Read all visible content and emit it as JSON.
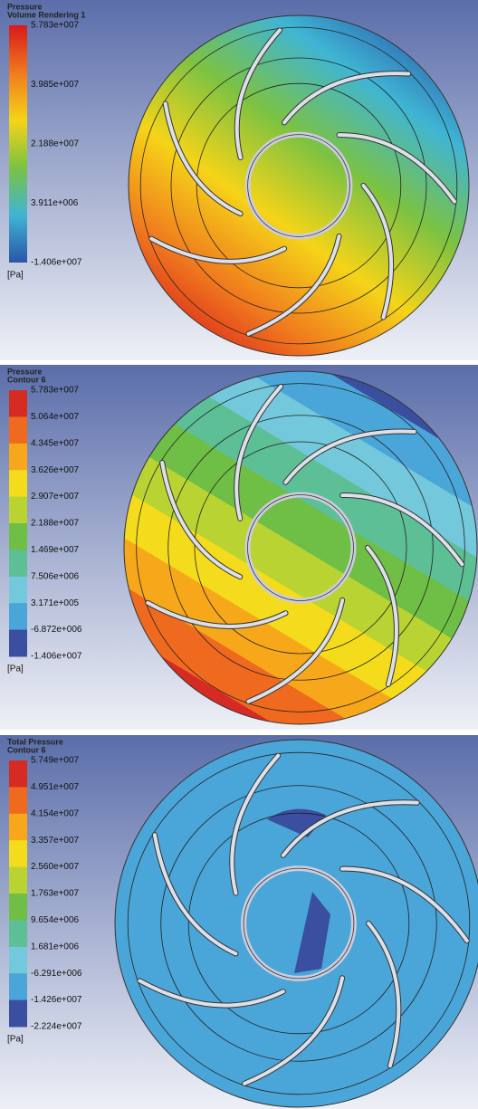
{
  "panels": [
    {
      "title": [
        "Pressure",
        "Volume Rendering 1"
      ],
      "legend": [
        "5.783e+007",
        "3.985e+007",
        "2.188e+007",
        "3.911e+006",
        "-1.406e+007"
      ],
      "unit": "[Pa]"
    },
    {
      "title": [
        "Pressure",
        "Contour 6"
      ],
      "legend": [
        "5.783e+007",
        "5.064e+007",
        "4.345e+007",
        "3.626e+007",
        "2.907e+007",
        "2.188e+007",
        "1.469e+007",
        "7.506e+006",
        "3.171e+005",
        "-6.872e+006",
        "-1.406e+007"
      ],
      "unit": "[Pa]"
    },
    {
      "title": [
        "Total Pressure",
        "Contour 6"
      ],
      "legend": [
        "5.749e+007",
        "4.951e+007",
        "4.154e+007",
        "3.357e+007",
        "2.560e+007",
        "1.763e+007",
        "9.654e+006",
        "1.681e+006",
        "-6.291e+006",
        "-1.426e+007",
        "-2.224e+007"
      ],
      "unit": "[Pa]"
    }
  ]
}
